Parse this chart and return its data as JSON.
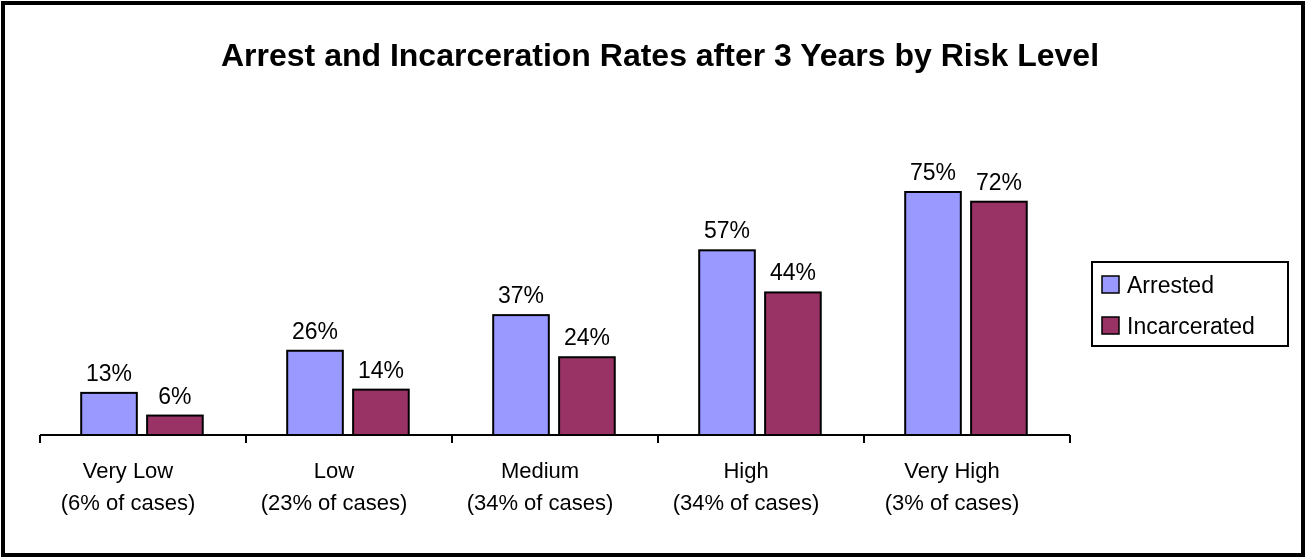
{
  "chart_data": {
    "type": "bar",
    "title": "Arrest and Incarceration Rates after 3 Years by Risk Level",
    "categories": [
      "Very Low\n(6% of cases)",
      "Low\n(23% of cases)",
      "Medium\n(34% of cases)",
      "High\n(34% of cases)",
      "Very High\n(3% of cases)"
    ],
    "series": [
      {
        "name": "Arrested",
        "color": "#9999ff",
        "values": [
          13,
          26,
          37,
          57,
          75
        ],
        "value_labels": [
          "13%",
          "26%",
          "37%",
          "57%",
          "75%"
        ]
      },
      {
        "name": "Incarcerated",
        "color": "#993366",
        "values": [
          6,
          14,
          24,
          44,
          72
        ],
        "value_labels": [
          "6%",
          "14%",
          "24%",
          "44%",
          "72%"
        ]
      }
    ],
    "legend": "right"
  }
}
